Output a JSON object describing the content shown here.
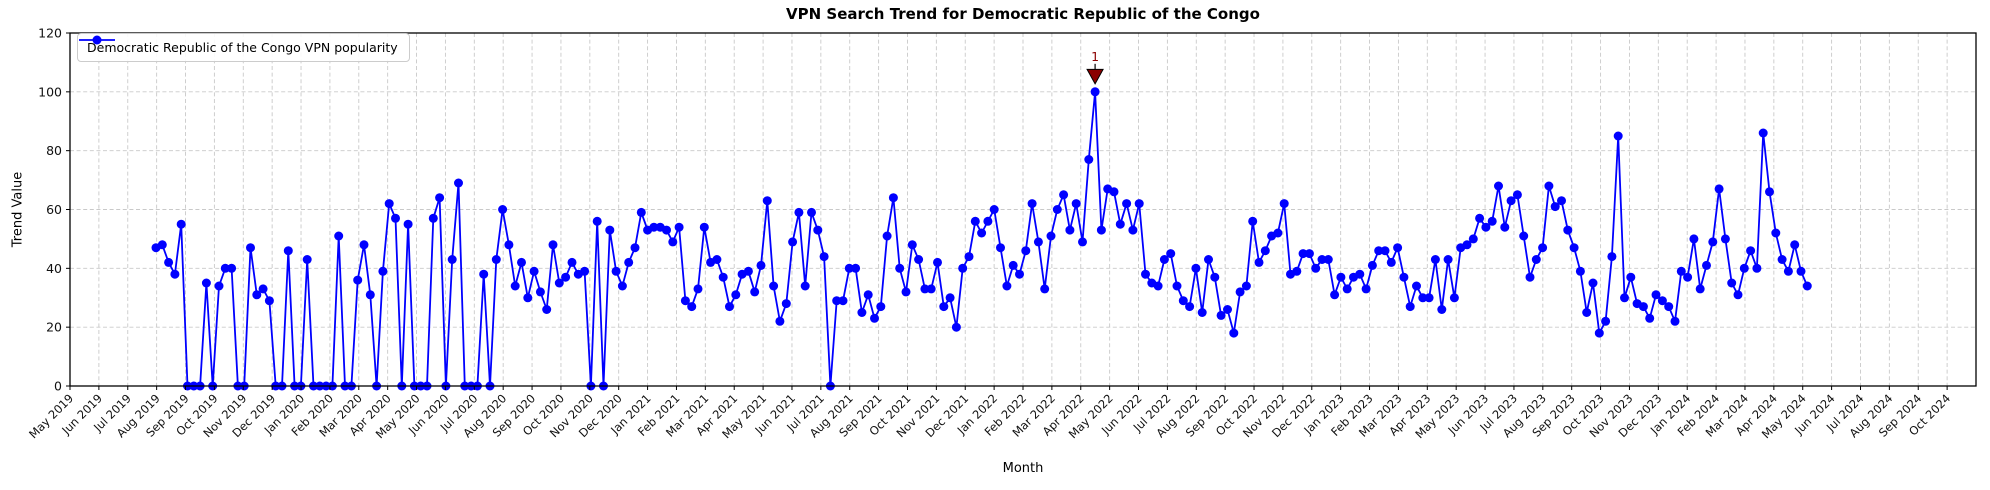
{
  "chart_data": {
    "type": "line",
    "title": "VPN Search Trend for Democratic Republic of the Congo",
    "xlabel": "Month",
    "ylabel": "Trend Value",
    "ylim": [
      0,
      120
    ],
    "yticks": [
      0,
      20,
      40,
      60,
      80,
      100,
      120
    ],
    "grid": true,
    "legend": {
      "position": "upper-left",
      "entries": [
        "Democratic Republic of the Congo VPN popularity"
      ]
    },
    "x_tick_labels": [
      "May 2019",
      "Jun 2019",
      "Jul 2019",
      "Aug 2019",
      "Sep 2019",
      "Oct 2019",
      "Nov 2019",
      "Dec 2019",
      "Jan 2020",
      "Feb 2020",
      "Mar 2020",
      "Apr 2020",
      "May 2020",
      "Jun 2020",
      "Jul 2020",
      "Aug 2020",
      "Sep 2020",
      "Oct 2020",
      "Nov 2020",
      "Dec 2020",
      "Jan 2021",
      "Feb 2021",
      "Mar 2021",
      "Apr 2021",
      "May 2021",
      "Jun 2021",
      "Jul 2021",
      "Aug 2021",
      "Sep 2021",
      "Oct 2021",
      "Nov 2021",
      "Dec 2021",
      "Jan 2022",
      "Feb 2022",
      "Mar 2022",
      "Apr 2022",
      "May 2022",
      "Jun 2022",
      "Jul 2022",
      "Aug 2022",
      "Sep 2022",
      "Oct 2022",
      "Nov 2022",
      "Dec 2022",
      "Jan 2023",
      "Feb 2023",
      "Mar 2023",
      "Apr 2023",
      "May 2023",
      "Jun 2023",
      "Jul 2023",
      "Aug 2023",
      "Sep 2023",
      "Oct 2023",
      "Nov 2023",
      "Dec 2023",
      "Jan 2024",
      "Feb 2024",
      "Mar 2024",
      "Apr 2024",
      "May 2024",
      "Jun 2024",
      "Jul 2024",
      "Aug 2024",
      "Sep 2024",
      "Oct 2024"
    ],
    "series": [
      {
        "name": "Democratic Republic of the Congo VPN popularity",
        "color": "#0000ff",
        "marker": "circle",
        "cadence": "weekly",
        "x_span_labels": [
          "Aug 2019",
          "Aug 2024"
        ],
        "values": [
          47,
          48,
          42,
          38,
          55,
          0,
          0,
          0,
          35,
          0,
          34,
          40,
          40,
          0,
          0,
          47,
          31,
          33,
          29,
          0,
          0,
          46,
          0,
          0,
          43,
          0,
          0,
          0,
          0,
          51,
          0,
          0,
          36,
          48,
          31,
          0,
          39,
          62,
          57,
          0,
          55,
          0,
          0,
          0,
          57,
          64,
          0,
          43,
          69,
          0,
          0,
          0,
          38,
          0,
          43,
          60,
          48,
          34,
          42,
          30,
          39,
          32,
          26,
          48,
          35,
          37,
          42,
          38,
          39,
          0,
          56,
          0,
          53,
          39,
          34,
          42,
          47,
          59,
          53,
          54,
          54,
          53,
          49,
          54,
          29,
          27,
          33,
          54,
          42,
          43,
          37,
          27,
          31,
          38,
          39,
          32,
          41,
          63,
          34,
          22,
          28,
          49,
          59,
          34,
          59,
          53,
          44,
          0,
          29,
          29,
          40,
          40,
          25,
          31,
          23,
          27,
          51,
          64,
          40,
          32,
          48,
          43,
          33,
          33,
          42,
          27,
          30,
          20,
          40,
          44,
          56,
          52,
          56,
          60,
          47,
          34,
          41,
          38,
          46,
          62,
          49,
          33,
          51,
          60,
          65,
          53,
          62,
          49,
          77,
          100,
          53,
          67,
          66,
          55,
          62,
          53,
          62,
          38,
          35,
          34,
          43,
          45,
          34,
          29,
          27,
          40,
          25,
          43,
          37,
          24,
          26,
          18,
          32,
          34,
          56,
          42,
          46,
          51,
          52,
          62,
          38,
          39,
          45,
          45,
          40,
          43,
          43,
          31,
          37,
          33,
          37,
          38,
          33,
          41,
          46,
          46,
          42,
          47,
          37,
          27,
          34,
          30,
          30,
          43,
          26,
          43,
          30,
          47,
          48,
          50,
          57,
          54,
          56,
          68,
          54,
          63,
          65,
          51,
          37,
          43,
          47,
          68,
          61,
          63,
          53,
          47,
          39,
          25,
          35,
          18,
          22,
          44,
          85,
          30,
          37,
          28,
          27,
          23,
          31,
          29,
          27,
          22,
          39,
          37,
          50,
          33,
          41,
          49,
          67,
          50,
          35,
          31,
          40,
          46,
          40,
          86,
          66,
          52,
          43,
          39,
          48,
          39,
          34
        ]
      }
    ],
    "annotations": [
      {
        "text": "1",
        "at": "max",
        "value": 100,
        "marker": "triangle-down",
        "color": "#8b0000"
      }
    ],
    "style": {
      "line_color": "#0000ff",
      "grid_color": "#c9c9c9",
      "axis_color": "#000000",
      "background": "#ffffff"
    }
  }
}
